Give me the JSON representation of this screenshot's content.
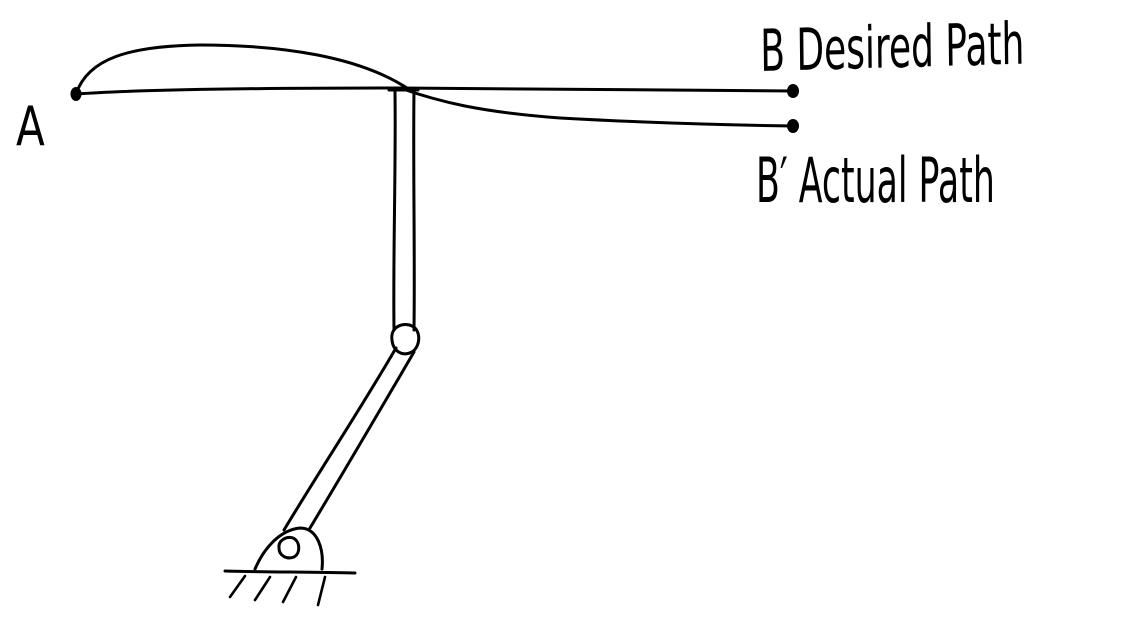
{
  "labels": {
    "point_a": "A",
    "desired": "B Desired Path",
    "actual": "B′ Actual Path"
  },
  "colors": {
    "ink": "#000000",
    "paper": "#ffffff"
  }
}
